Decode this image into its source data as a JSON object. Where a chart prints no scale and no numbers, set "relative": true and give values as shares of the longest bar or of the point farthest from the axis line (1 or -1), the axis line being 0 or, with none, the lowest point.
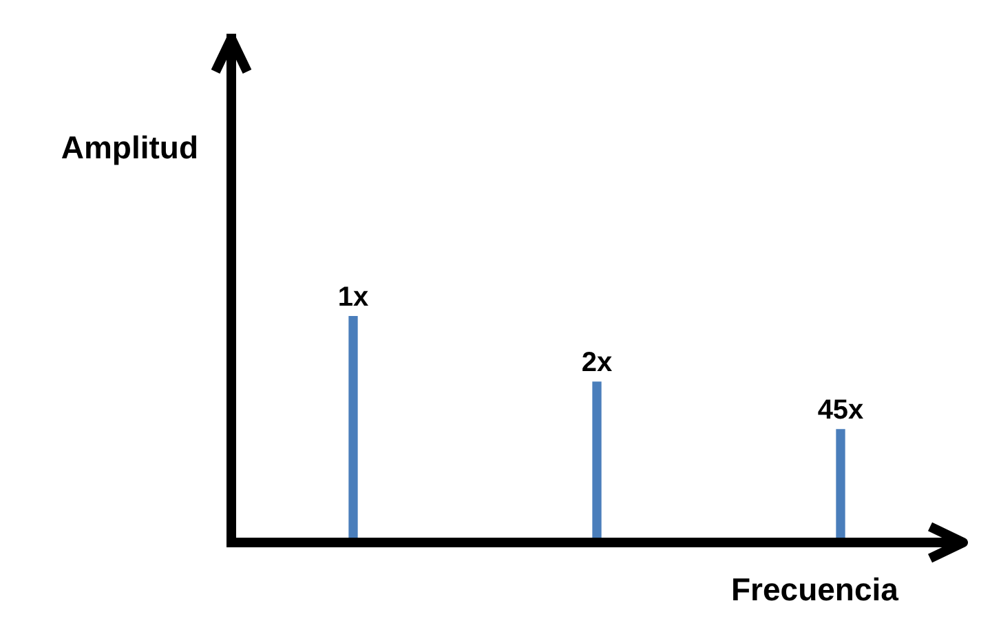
{
  "chart_data": {
    "type": "bar",
    "xlabel": "Frecuencia",
    "ylabel": "Amplitud",
    "relative": true,
    "color": "#4a7ebb",
    "categories": [
      null,
      null,
      null
    ],
    "values": [
      1,
      0.71,
      0.5
    ],
    "annotations": [
      "1x",
      "2x",
      "45x"
    ]
  }
}
